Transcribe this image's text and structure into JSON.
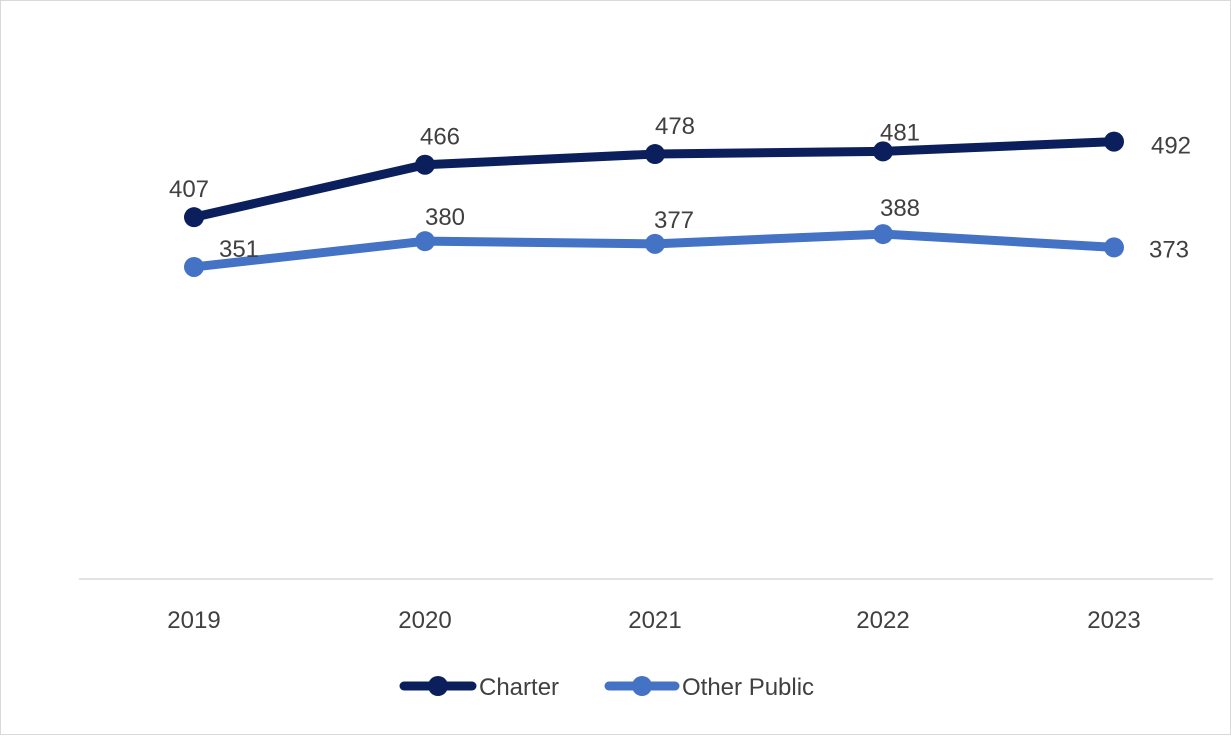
{
  "chart_data": {
    "type": "line",
    "title": "",
    "xlabel": "",
    "ylabel": "",
    "categories": [
      "2019",
      "2020",
      "2021",
      "2022",
      "2023"
    ],
    "series": [
      {
        "name": "Charter",
        "values": [
          407,
          466,
          478,
          481,
          492
        ],
        "color": "#0b1f5c"
      },
      {
        "name": "Other Public",
        "values": [
          351,
          380,
          377,
          388,
          373
        ],
        "color": "#4472c4"
      }
    ],
    "ylim": [
      0,
      600
    ],
    "grid": false,
    "legend_position": "bottom-center",
    "data_labels": true
  }
}
